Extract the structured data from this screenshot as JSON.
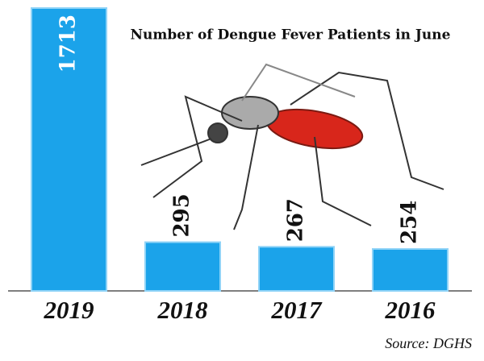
{
  "chart_data": {
    "type": "bar",
    "title": "Number of Dengue Fever Patients in June",
    "categories": [
      "2019",
      "2018",
      "2017",
      "2016"
    ],
    "values": [
      1713,
      295,
      267,
      254
    ],
    "color": "#1ba3ea",
    "source": "Source: DGHS"
  }
}
